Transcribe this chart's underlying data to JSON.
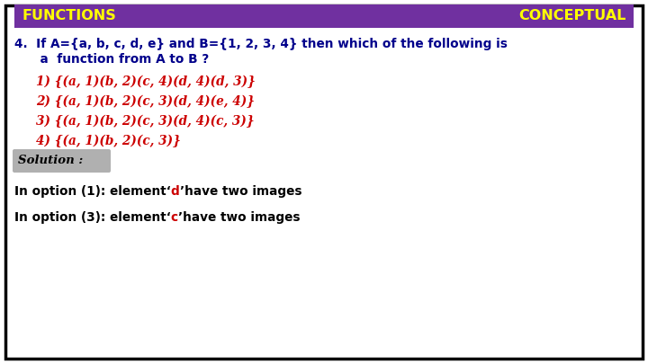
{
  "bg_color": "#ffffff",
  "border_color": "#000000",
  "header_bg": "#7030a0",
  "header_text_left": "FUNCTIONS",
  "header_text_right": "CONCEPTUAL",
  "header_text_color": "#ffff00",
  "question_color": "#00008b",
  "options_color": "#cc0000",
  "solution_label": "Solution :",
  "solution_bg": "#b0b0b0",
  "answer_color": "#000000",
  "answer_highlight_color": "#cc0000",
  "figw": 7.2,
  "figh": 4.05,
  "dpi": 100
}
